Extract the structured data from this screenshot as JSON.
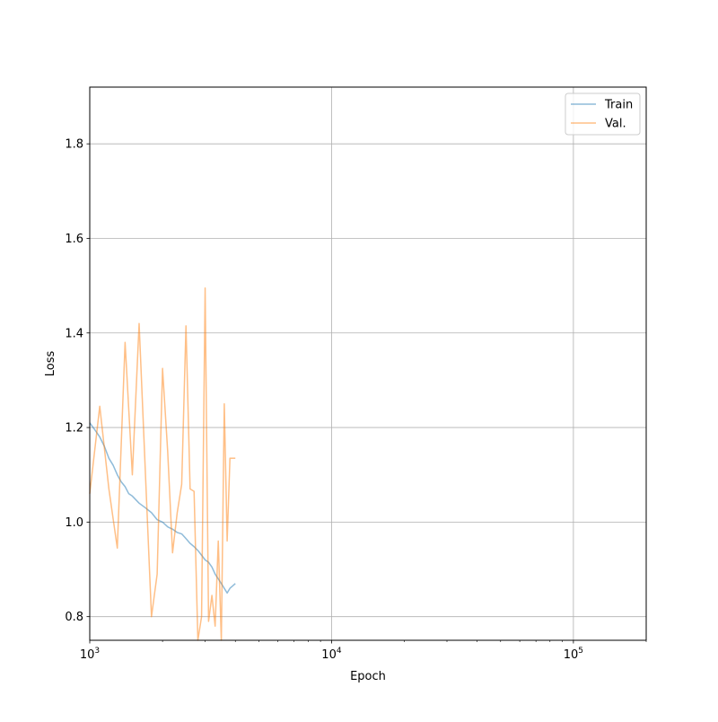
{
  "chart_data": {
    "type": "line",
    "title": "",
    "xlabel": "Epoch",
    "ylabel": "Loss",
    "xscale": "log",
    "xlim": [
      1000,
      200000
    ],
    "ylim": [
      0.75,
      1.92
    ],
    "grid": true,
    "legend": {
      "placement": "top-right",
      "entries": [
        "Train",
        "Val."
      ]
    },
    "x_ticks": [
      {
        "value": 1000,
        "label": "10^3",
        "base": "10",
        "exp": "3"
      },
      {
        "value": 10000,
        "label": "10^4",
        "base": "10",
        "exp": "4"
      },
      {
        "value": 100000,
        "label": "10^5",
        "base": "10",
        "exp": "5"
      }
    ],
    "y_ticks": [
      {
        "value": 0.8,
        "label": "0.8"
      },
      {
        "value": 1.0,
        "label": "1.0"
      },
      {
        "value": 1.2,
        "label": "1.2"
      },
      {
        "value": 1.4,
        "label": "1.4"
      },
      {
        "value": 1.6,
        "label": "1.6"
      },
      {
        "value": 1.8,
        "label": "1.8"
      }
    ],
    "series": [
      {
        "name": "Train",
        "color": "#1f77b4",
        "x": [
          1000,
          1050,
          1100,
          1150,
          1200,
          1250,
          1300,
          1350,
          1400,
          1450,
          1500,
          1600,
          1700,
          1800,
          1900,
          2000,
          2100,
          2200,
          2300,
          2400,
          2500,
          2600,
          2700,
          2800,
          2900,
          3000,
          3100,
          3200,
          3300,
          3400,
          3500,
          3600,
          3700,
          3800,
          3900,
          4000
        ],
        "y": [
          1.21,
          1.195,
          1.18,
          1.16,
          1.135,
          1.12,
          1.1,
          1.085,
          1.075,
          1.06,
          1.055,
          1.04,
          1.03,
          1.02,
          1.005,
          1.0,
          0.99,
          0.985,
          0.978,
          0.975,
          0.965,
          0.955,
          0.948,
          0.94,
          0.93,
          0.92,
          0.915,
          0.905,
          0.89,
          0.88,
          0.87,
          0.86,
          0.85,
          0.86,
          0.865,
          0.87
        ]
      },
      {
        "name": "Val.",
        "color": "#ff7f0e",
        "x": [
          1000,
          1100,
          1200,
          1300,
          1400,
          1500,
          1600,
          1700,
          1800,
          1900,
          2000,
          2100,
          2200,
          2300,
          2400,
          2500,
          2600,
          2700,
          2800,
          2900,
          3000,
          3100,
          3200,
          3300,
          3400,
          3500,
          3600,
          3700,
          3800,
          3900,
          4000
        ],
        "y": [
          1.06,
          1.245,
          1.07,
          0.945,
          1.38,
          1.1,
          1.42,
          1.1,
          0.8,
          0.89,
          1.325,
          1.15,
          0.935,
          1.02,
          1.08,
          1.415,
          1.07,
          1.065,
          0.75,
          0.8,
          1.495,
          0.79,
          0.845,
          0.78,
          0.96,
          0.75,
          1.25,
          0.96,
          1.135,
          1.135,
          1.135
        ]
      }
    ]
  }
}
